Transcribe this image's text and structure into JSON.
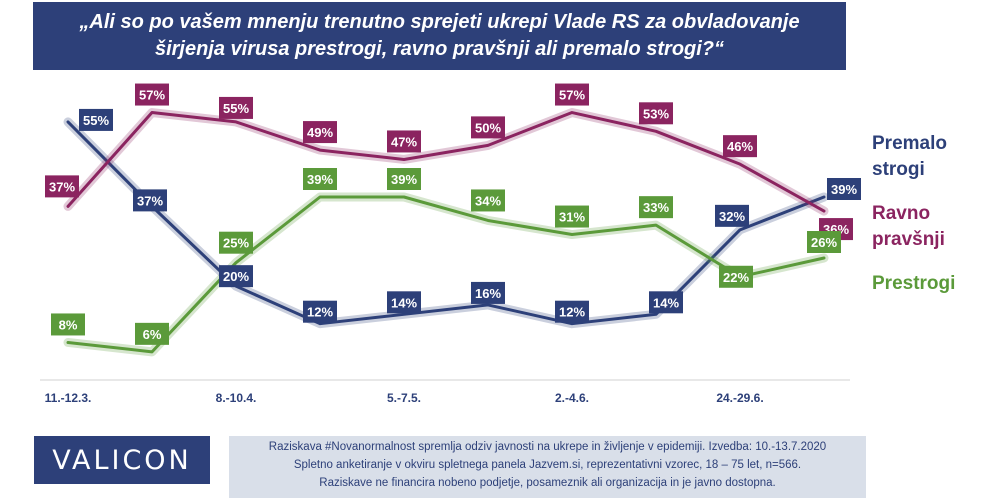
{
  "title": "„Ali so po vašem mnenju trenutno sprejeti ukrepi Vlade RS za obvladovanje širjenja virusa prestrogi, ravno pravšnji ali premalo strogi?“",
  "legend": {
    "premalo": "Premalo strogi",
    "ravno": "Ravno pravšnji",
    "prestrogi": "Prestrogi"
  },
  "logo": "VALICON",
  "note": {
    "line1": "Raziskava #Novanormalnost spremlja odziv javnosti na ukrepe in življenje v epidemiji. Izvedba: 10.-13.7.2020",
    "line2": "Spletno anketiranje v okviru spletnega panela Jazvem.si, reprezentativni vzorec, 18 – 75 let, n=566.",
    "line3": "Raziskave ne financira nobeno podjetje, posameznik ali organizacija in je javno dostopna."
  },
  "chart_data": {
    "type": "line",
    "x_tick_labels": [
      "11.-12.3.",
      "8.-10.4.",
      "5.-7.5.",
      "2.-4.6.",
      "24.-29.6."
    ],
    "points": 10,
    "ylim": [
      0,
      65
    ],
    "grid": false,
    "legend_position": "right",
    "series": [
      {
        "name": "Premalo strogi",
        "color": "#2d4079",
        "values": [
          55,
          37,
          20,
          12,
          14,
          16,
          12,
          14,
          32,
          39
        ]
      },
      {
        "name": "Ravno pravšnji",
        "color": "#8b2460",
        "values": [
          37,
          57,
          55,
          49,
          47,
          50,
          57,
          53,
          46,
          36
        ]
      },
      {
        "name": "Prestrogi",
        "color": "#5b9a3a",
        "values": [
          8,
          6,
          25,
          39,
          39,
          34,
          31,
          33,
          22,
          26
        ]
      }
    ]
  }
}
